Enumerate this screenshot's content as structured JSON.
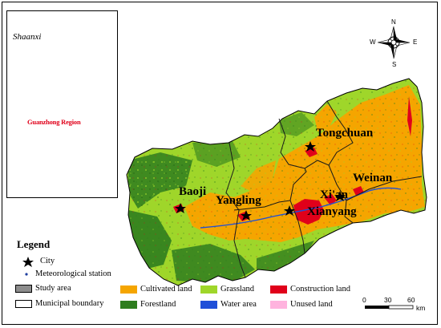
{
  "inset": {
    "province_label": "Shaanxi",
    "region_label": "Guanzhong Region"
  },
  "cities": [
    {
      "name": "Tongchuan"
    },
    {
      "name": "Weinan"
    },
    {
      "name": "Xi'an"
    },
    {
      "name": "Xianyang"
    },
    {
      "name": "Baoji"
    },
    {
      "name": "Yangling"
    }
  ],
  "compass": {
    "north": "N",
    "south": "S",
    "east": "E",
    "west": "W"
  },
  "legend": {
    "title": "Legend",
    "items": [
      {
        "label": "City",
        "symbol": "star"
      },
      {
        "label": "Meteorological station",
        "symbol": "dot"
      },
      {
        "label": "Study area",
        "color": "#8c8c8c"
      },
      {
        "label": "Municipal boundary",
        "color": "#ffffff"
      },
      {
        "label": "Cultivated land",
        "color": "#f5a500"
      },
      {
        "label": "Forestland",
        "color": "#2e7d1e"
      },
      {
        "label": "Grassland",
        "color": "#9fd62a"
      },
      {
        "label": "Water area",
        "color": "#1f4fd8"
      },
      {
        "label": "Construction land",
        "color": "#e0001a"
      },
      {
        "label": "Unused land",
        "color": "#ffb3de"
      }
    ]
  },
  "scale_bar": {
    "ticks": [
      "0",
      "30",
      "60"
    ],
    "unit": "km"
  }
}
